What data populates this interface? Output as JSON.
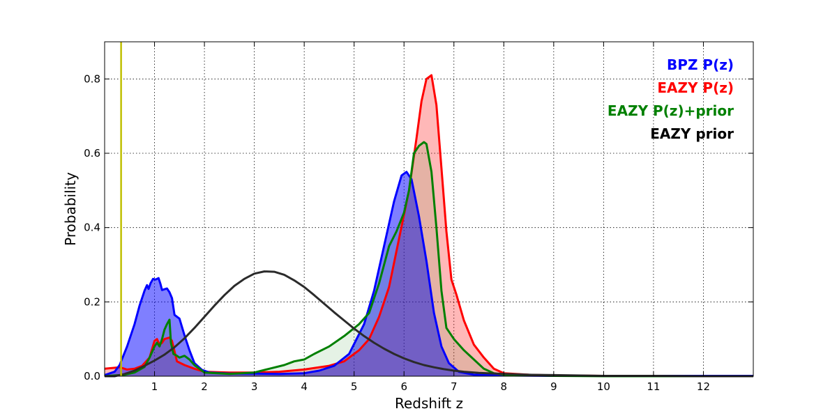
{
  "chart_data": {
    "type": "area",
    "xlabel": "Redshift z",
    "ylabel": "Probability",
    "xlim": [
      0,
      13
    ],
    "ylim": [
      0,
      0.9
    ],
    "grid": true,
    "legend_position": "top-right",
    "x_ticks": [
      1,
      2,
      3,
      4,
      5,
      6,
      7,
      8,
      9,
      10,
      11,
      12
    ],
    "x_tick_labels": [
      "1",
      "2",
      "3",
      "4",
      "5",
      "6",
      "7",
      "8",
      "9",
      "10",
      "11",
      "12"
    ],
    "y_ticks": [
      0,
      0.2,
      0.4,
      0.6,
      0.8
    ],
    "y_tick_labels": [
      "0.0",
      "0.2",
      "0.4",
      "0.6",
      "0.8"
    ],
    "vertical_line": {
      "x": 0.33,
      "color": "#bfbf00"
    },
    "series": [
      {
        "name": "EAZY P(z)",
        "color": "#ff0000",
        "fill": "rgba(255,0,0,0.28)",
        "fill_opacity": 0.28,
        "points": [
          [
            0,
            0.02
          ],
          [
            0.15,
            0.022
          ],
          [
            0.3,
            0.024
          ],
          [
            0.45,
            0.018
          ],
          [
            0.6,
            0.02
          ],
          [
            0.75,
            0.028
          ],
          [
            0.9,
            0.05
          ],
          [
            1.0,
            0.095
          ],
          [
            1.05,
            0.1
          ],
          [
            1.1,
            0.085
          ],
          [
            1.15,
            0.09
          ],
          [
            1.2,
            0.1
          ],
          [
            1.3,
            0.104
          ],
          [
            1.35,
            0.095
          ],
          [
            1.45,
            0.04
          ],
          [
            1.6,
            0.03
          ],
          [
            1.8,
            0.02
          ],
          [
            2.0,
            0.012
          ],
          [
            2.5,
            0.01
          ],
          [
            3,
            0.01
          ],
          [
            3.5,
            0.012
          ],
          [
            4,
            0.018
          ],
          [
            4.5,
            0.028
          ],
          [
            4.8,
            0.04
          ],
          [
            5.1,
            0.07
          ],
          [
            5.3,
            0.1
          ],
          [
            5.5,
            0.16
          ],
          [
            5.7,
            0.24
          ],
          [
            5.9,
            0.37
          ],
          [
            6.1,
            0.5
          ],
          [
            6.25,
            0.64
          ],
          [
            6.35,
            0.74
          ],
          [
            6.45,
            0.8
          ],
          [
            6.55,
            0.81
          ],
          [
            6.65,
            0.73
          ],
          [
            6.75,
            0.56
          ],
          [
            6.85,
            0.39
          ],
          [
            6.95,
            0.26
          ],
          [
            7.05,
            0.22
          ],
          [
            7.2,
            0.15
          ],
          [
            7.4,
            0.085
          ],
          [
            7.6,
            0.05
          ],
          [
            7.8,
            0.02
          ],
          [
            8.0,
            0.008
          ],
          [
            8.5,
            0.004
          ],
          [
            9,
            0.002
          ],
          [
            10,
            0.001
          ],
          [
            11,
            0
          ],
          [
            13,
            0
          ]
        ]
      },
      {
        "name": "BPZ P(z)",
        "color": "#0000ff",
        "fill": "rgba(0,0,255,0.5)",
        "fill_opacity": 0.5,
        "points": [
          [
            0,
            0.003
          ],
          [
            0.2,
            0.012
          ],
          [
            0.3,
            0.03
          ],
          [
            0.45,
            0.08
          ],
          [
            0.6,
            0.14
          ],
          [
            0.7,
            0.19
          ],
          [
            0.8,
            0.23
          ],
          [
            0.85,
            0.245
          ],
          [
            0.88,
            0.235
          ],
          [
            0.92,
            0.25
          ],
          [
            0.97,
            0.262
          ],
          [
            1.02,
            0.26
          ],
          [
            1.08,
            0.264
          ],
          [
            1.12,
            0.248
          ],
          [
            1.15,
            0.232
          ],
          [
            1.2,
            0.234
          ],
          [
            1.25,
            0.236
          ],
          [
            1.3,
            0.226
          ],
          [
            1.35,
            0.21
          ],
          [
            1.4,
            0.165
          ],
          [
            1.5,
            0.155
          ],
          [
            1.6,
            0.11
          ],
          [
            1.7,
            0.07
          ],
          [
            1.8,
            0.035
          ],
          [
            1.95,
            0.017
          ],
          [
            2.1,
            0.01
          ],
          [
            2.5,
            0.007
          ],
          [
            3,
            0.007
          ],
          [
            3.5,
            0.006
          ],
          [
            4,
            0.008
          ],
          [
            4.3,
            0.015
          ],
          [
            4.6,
            0.028
          ],
          [
            4.9,
            0.06
          ],
          [
            5.2,
            0.14
          ],
          [
            5.4,
            0.23
          ],
          [
            5.6,
            0.35
          ],
          [
            5.8,
            0.47
          ],
          [
            5.95,
            0.54
          ],
          [
            6.05,
            0.55
          ],
          [
            6.15,
            0.53
          ],
          [
            6.3,
            0.43
          ],
          [
            6.45,
            0.31
          ],
          [
            6.6,
            0.17
          ],
          [
            6.75,
            0.08
          ],
          [
            6.9,
            0.035
          ],
          [
            7.1,
            0.012
          ],
          [
            7.4,
            0.004
          ],
          [
            8,
            0.002
          ],
          [
            9,
            0.001
          ],
          [
            10,
            0.001
          ],
          [
            11,
            0.001
          ],
          [
            12,
            0.001
          ],
          [
            13,
            0.001
          ]
        ]
      },
      {
        "name": "EAZY P(z)+prior",
        "color": "#008000",
        "fill": "rgba(0,128,0,0.1)",
        "fill_opacity": 0.1,
        "points": [
          [
            0,
            0
          ],
          [
            0.4,
            0.004
          ],
          [
            0.6,
            0.01
          ],
          [
            0.8,
            0.025
          ],
          [
            0.9,
            0.05
          ],
          [
            1.0,
            0.08
          ],
          [
            1.05,
            0.09
          ],
          [
            1.1,
            0.08
          ],
          [
            1.15,
            0.1
          ],
          [
            1.2,
            0.125
          ],
          [
            1.25,
            0.14
          ],
          [
            1.3,
            0.152
          ],
          [
            1.33,
            0.09
          ],
          [
            1.38,
            0.06
          ],
          [
            1.45,
            0.055
          ],
          [
            1.5,
            0.05
          ],
          [
            1.6,
            0.055
          ],
          [
            1.7,
            0.045
          ],
          [
            1.8,
            0.03
          ],
          [
            1.9,
            0.02
          ],
          [
            2.0,
            0.01
          ],
          [
            2.5,
            0.006
          ],
          [
            3.0,
            0.01
          ],
          [
            3.3,
            0.02
          ],
          [
            3.6,
            0.03
          ],
          [
            3.8,
            0.04
          ],
          [
            4.0,
            0.045
          ],
          [
            4.2,
            0.06
          ],
          [
            4.5,
            0.08
          ],
          [
            4.8,
            0.108
          ],
          [
            5.1,
            0.14
          ],
          [
            5.3,
            0.17
          ],
          [
            5.5,
            0.25
          ],
          [
            5.7,
            0.35
          ],
          [
            5.85,
            0.39
          ],
          [
            6.0,
            0.44
          ],
          [
            6.1,
            0.5
          ],
          [
            6.2,
            0.6
          ],
          [
            6.3,
            0.62
          ],
          [
            6.4,
            0.63
          ],
          [
            6.45,
            0.625
          ],
          [
            6.55,
            0.55
          ],
          [
            6.65,
            0.4
          ],
          [
            6.75,
            0.23
          ],
          [
            6.85,
            0.13
          ],
          [
            7.0,
            0.1
          ],
          [
            7.2,
            0.07
          ],
          [
            7.4,
            0.045
          ],
          [
            7.6,
            0.02
          ],
          [
            7.8,
            0.008
          ],
          [
            8,
            0.004
          ],
          [
            9,
            0.001
          ],
          [
            10,
            0
          ],
          [
            13,
            0
          ]
        ]
      },
      {
        "name": "EAZY prior",
        "color": "#2b2b2b",
        "fill": "none",
        "fill_opacity": 0,
        "points": [
          [
            0,
            0
          ],
          [
            0.2,
            0.0
          ],
          [
            0.4,
            0.006
          ],
          [
            0.6,
            0.015
          ],
          [
            0.8,
            0.028
          ],
          [
            1.0,
            0.042
          ],
          [
            1.2,
            0.058
          ],
          [
            1.4,
            0.078
          ],
          [
            1.6,
            0.102
          ],
          [
            1.8,
            0.13
          ],
          [
            2.0,
            0.16
          ],
          [
            2.2,
            0.19
          ],
          [
            2.4,
            0.218
          ],
          [
            2.6,
            0.243
          ],
          [
            2.8,
            0.262
          ],
          [
            3.0,
            0.276
          ],
          [
            3.2,
            0.282
          ],
          [
            3.4,
            0.281
          ],
          [
            3.6,
            0.273
          ],
          [
            3.8,
            0.258
          ],
          [
            4.0,
            0.24
          ],
          [
            4.2,
            0.218
          ],
          [
            4.4,
            0.195
          ],
          [
            4.6,
            0.172
          ],
          [
            4.8,
            0.15
          ],
          [
            5.0,
            0.128
          ],
          [
            5.2,
            0.108
          ],
          [
            5.4,
            0.09
          ],
          [
            5.6,
            0.074
          ],
          [
            5.8,
            0.06
          ],
          [
            6.0,
            0.048
          ],
          [
            6.2,
            0.038
          ],
          [
            6.4,
            0.03
          ],
          [
            6.6,
            0.024
          ],
          [
            6.8,
            0.019
          ],
          [
            7.0,
            0.015
          ],
          [
            7.2,
            0.012
          ],
          [
            7.5,
            0.009
          ],
          [
            8,
            0.006
          ],
          [
            8.5,
            0.004
          ],
          [
            9,
            0.003
          ],
          [
            10,
            0.001
          ],
          [
            11,
            0.001
          ],
          [
            12,
            0
          ],
          [
            13,
            0
          ]
        ]
      }
    ],
    "legend": [
      {
        "label": "BPZ P(z)",
        "color": "#0000ff"
      },
      {
        "label": "EAZY P(z)",
        "color": "#ff0000"
      },
      {
        "label": "EAZY P(z)+prior",
        "color": "#008000"
      },
      {
        "label": "EAZY prior",
        "color": "#000000"
      }
    ]
  }
}
